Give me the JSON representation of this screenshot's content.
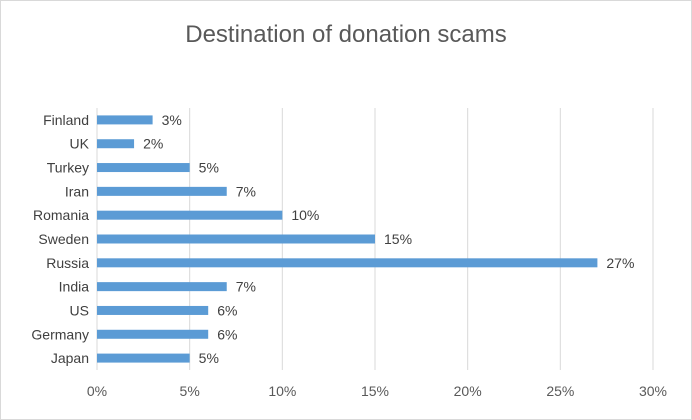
{
  "chart_data": {
    "type": "bar",
    "orientation": "horizontal",
    "title": "Destination of donation scams",
    "xlabel": "",
    "ylabel": "",
    "categories": [
      "Finland",
      "UK",
      "Turkey",
      "Iran",
      "Romania",
      "Sweden",
      "Russia",
      "India",
      "US",
      "Germany",
      "Japan"
    ],
    "values": [
      3,
      2,
      5,
      7,
      10,
      15,
      27,
      7,
      6,
      6,
      5
    ],
    "data_labels": [
      "3%",
      "2%",
      "5%",
      "7%",
      "10%",
      "15%",
      "27%",
      "7%",
      "6%",
      "6%",
      "5%"
    ],
    "xlim": [
      0,
      30
    ],
    "xticks": [
      0,
      5,
      10,
      15,
      20,
      25,
      30
    ],
    "xtick_labels": [
      "0%",
      "5%",
      "10%",
      "15%",
      "20%",
      "25%",
      "30%"
    ],
    "grid": true,
    "legend": "none",
    "bar_color": "#5b9bd5",
    "grid_color": "#d9d9d9"
  }
}
